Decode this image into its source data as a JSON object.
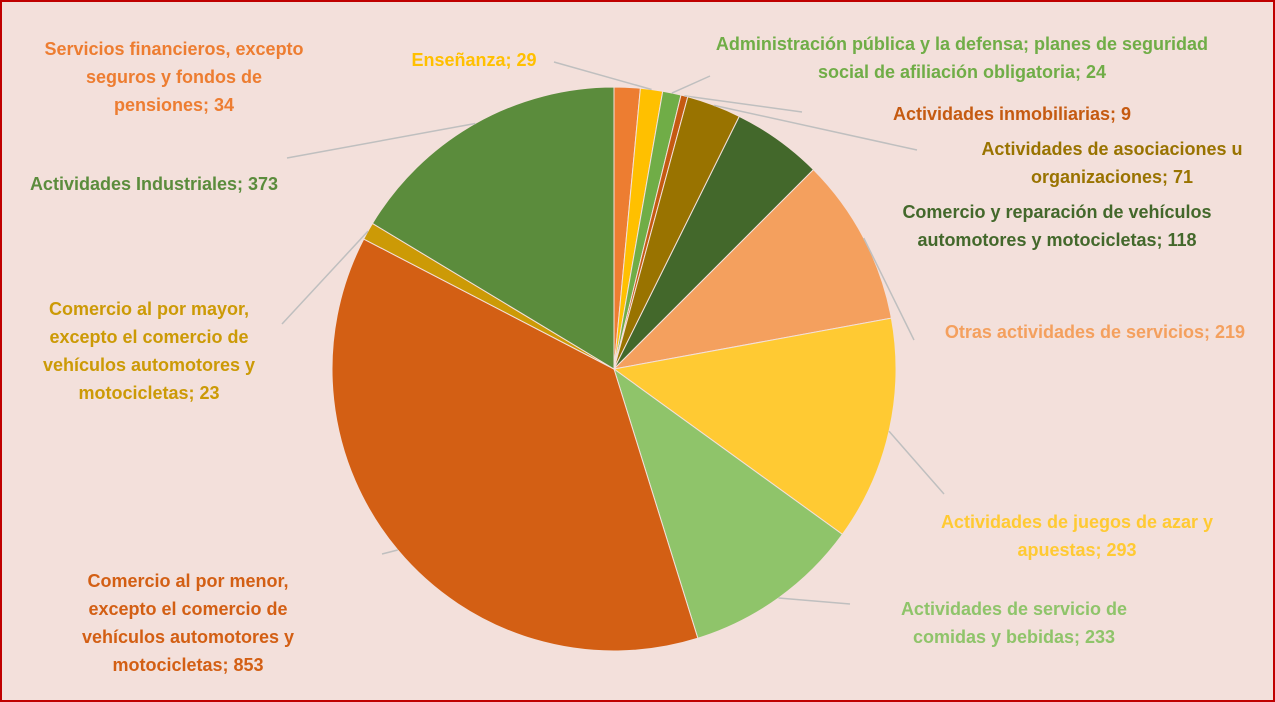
{
  "chart_data": {
    "type": "pie",
    "labels": [
      "Servicios financieros, excepto seguros y fondos de pensiones; 34",
      "Enseñanza; 29",
      "Administración pública y la defensa; planes de seguridad social de afiliación obligatoria; 24",
      "Actividades inmobiliarias; 9",
      "Actividades de asociaciones u organizaciones; 71",
      "Comercio y reparación de vehículos automotores y motocicletas; 118",
      "Otras actividades de servicios; 219",
      "Actividades de juegos de azar y apuestas; 293",
      "Actividades de servicio de comidas y bebidas; 233",
      "Comercio al por menor, excepto el comercio de vehículos automotores y motocicletas; 853",
      "Comercio al por mayor, excepto el comercio de vehículos automotores y motocicletas; 23",
      "Actividades Industriales; 373"
    ],
    "values": [
      34,
      29,
      24,
      9,
      71,
      118,
      219,
      293,
      233,
      853,
      23,
      373
    ],
    "colors": [
      "#ED7D31",
      "#FFC000",
      "#70AD47",
      "#C55A11",
      "#997300",
      "#43682B",
      "#F4A05E",
      "#FFCA33",
      "#8FC46A",
      "#D35F14",
      "#CC9A06",
      "#5B8C3C"
    ]
  }
}
